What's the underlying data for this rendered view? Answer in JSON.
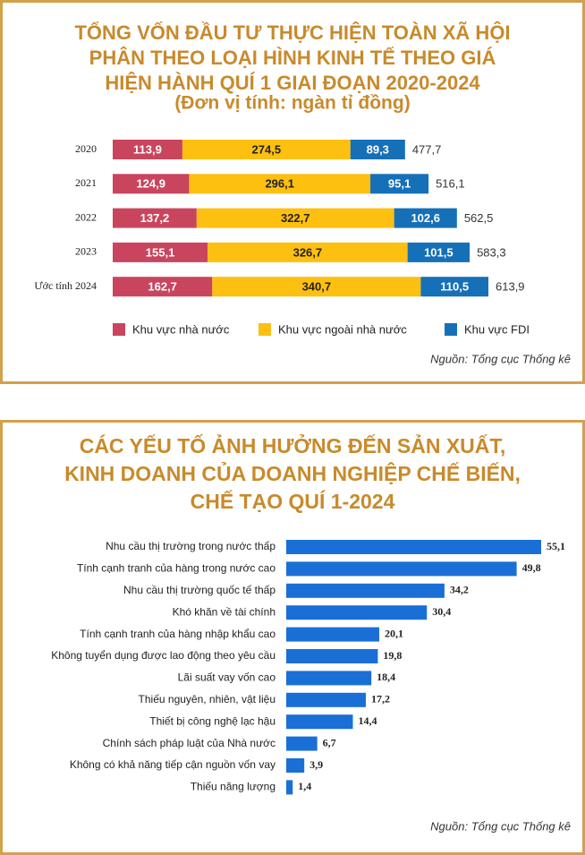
{
  "chart_data": [
    {
      "type": "stacked-bar-h",
      "title": [
        "TỔNG VỐN ĐẦU TƯ THỰC HIỆN TOÀN XÃ HỘI",
        "PHÂN THEO LOẠI HÌNH KINH TẾ THEO GIÁ",
        "HIỆN HÀNH QUÍ 1 GIAI ĐOẠN 2020-2024"
      ],
      "subtitle": "(Đơn vị tính: ngàn tỉ đồng)",
      "categories": [
        "2020",
        "2021",
        "2022",
        "2023",
        "Ước tính 2024"
      ],
      "series": [
        {
          "name": "Khu vực nhà nước",
          "color": "#c9455e",
          "values": [
            113.9,
            124.9,
            137.2,
            155.1,
            162.7
          ],
          "value_labels": [
            "113,9",
            "124,9",
            "137,2",
            "155,1",
            "162,7"
          ]
        },
        {
          "name": "Khu vực ngoài nhà nước",
          "color": "#fdc010",
          "values": [
            274.5,
            296.1,
            322.7,
            326.7,
            340.7
          ],
          "value_labels": [
            "274,5",
            "296,1",
            "322,7",
            "326,7",
            "340,7"
          ]
        },
        {
          "name": "Khu vực FDI",
          "color": "#1670b8",
          "values": [
            89.3,
            95.1,
            102.6,
            101.5,
            110.5
          ],
          "value_labels": [
            "89,3",
            "95,1",
            "102,6",
            "101,5",
            "110,5"
          ]
        }
      ],
      "totals": [
        477.7,
        516.1,
        562.5,
        583.3,
        613.9
      ],
      "total_labels": [
        "477,7",
        "516,1",
        "562,5",
        "583,3",
        "613,9"
      ],
      "source": "Nguồn: Tổng cục Thống kê"
    },
    {
      "type": "bar-h",
      "title": [
        "CÁC YẾU TỐ ẢNH HƯỞNG ĐẾN SẢN XUẤT,",
        "KINH DOANH CỦA DOANH NGHIỆP CHẾ BIẾN,",
        "CHẾ TẠO QUÍ 1-2024"
      ],
      "categories": [
        "Nhu cầu thị trường trong nước thấp",
        "Tính cạnh tranh của hàng trong nước cao",
        "Nhu cầu thị trường quốc tế thấp",
        "Khó khăn về tài chính",
        "Tính cạnh tranh của hàng nhập khẩu cao",
        "Không tuyển dụng được lao động theo yêu cầu",
        "Lãi suất vay vốn cao",
        "Thiếu nguyên, nhiên, vật liệu",
        "Thiết bị công nghệ lạc hậu",
        "Chính sách pháp luật của Nhà nước",
        "Không có khả năng tiếp cận nguồn vốn vay",
        "Thiếu năng lượng"
      ],
      "values": [
        55.1,
        49.8,
        34.2,
        30.4,
        20.1,
        19.8,
        18.4,
        17.2,
        14.4,
        6.7,
        3.9,
        1.4
      ],
      "value_labels": [
        "55,1",
        "49,8",
        "34,2",
        "30,4",
        "20,1",
        "19,8",
        "18,4",
        "17,2",
        "14,4",
        "6,7",
        "3,9",
        "1,4"
      ],
      "color": "#1a6fd6",
      "source": "Nguồn: Tổng cục Thống kê"
    }
  ]
}
